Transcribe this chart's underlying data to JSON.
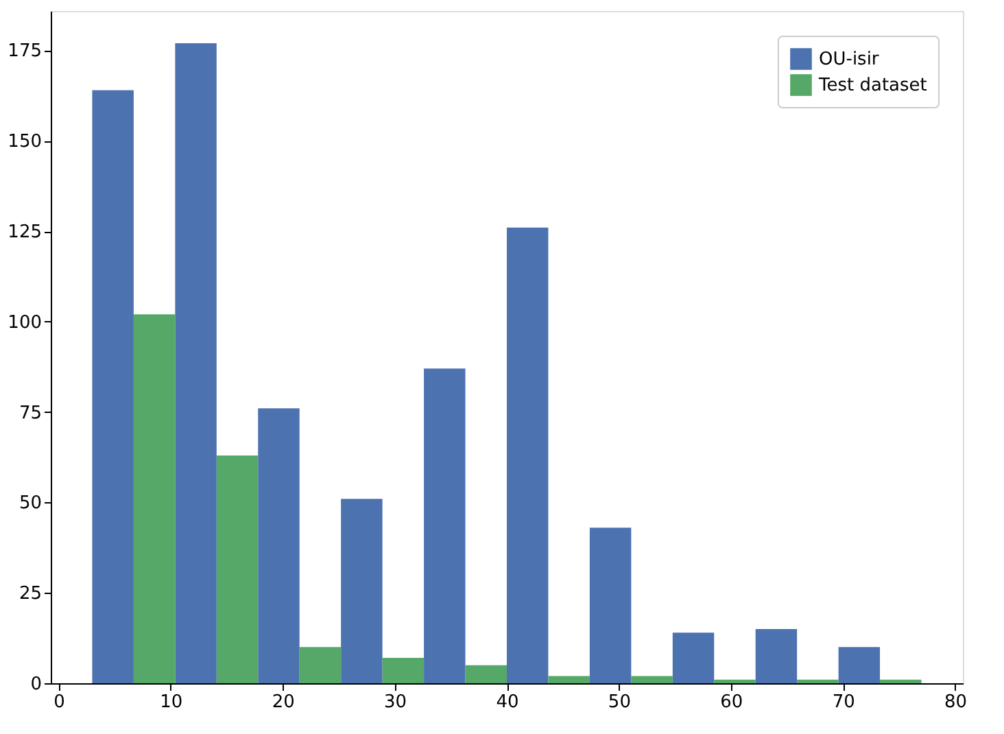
{
  "chart_data": {
    "type": "histogram",
    "bins": [
      3,
      10.4,
      17.8,
      25.2,
      32.6,
      40,
      47.4,
      54.8,
      62.2,
      69.6,
      77
    ],
    "series": [
      {
        "name": "OU-isir",
        "color": "#4c72b0",
        "values": [
          164,
          177,
          76,
          51,
          87,
          126,
          43,
          14,
          15,
          10
        ]
      },
      {
        "name": "Test dataset",
        "color": "#55a868",
        "values": [
          102,
          63,
          10,
          7,
          5,
          2,
          2,
          1,
          1,
          1
        ]
      }
    ],
    "xlim": [
      -0.7,
      80.7
    ],
    "xticks": [
      0,
      10,
      20,
      30,
      40,
      50,
      60,
      70,
      80
    ],
    "ylim": [
      0,
      185.9
    ],
    "yticks": [
      0,
      25,
      50,
      75,
      100,
      125,
      150,
      175
    ],
    "grid": false,
    "legend": "top right"
  }
}
